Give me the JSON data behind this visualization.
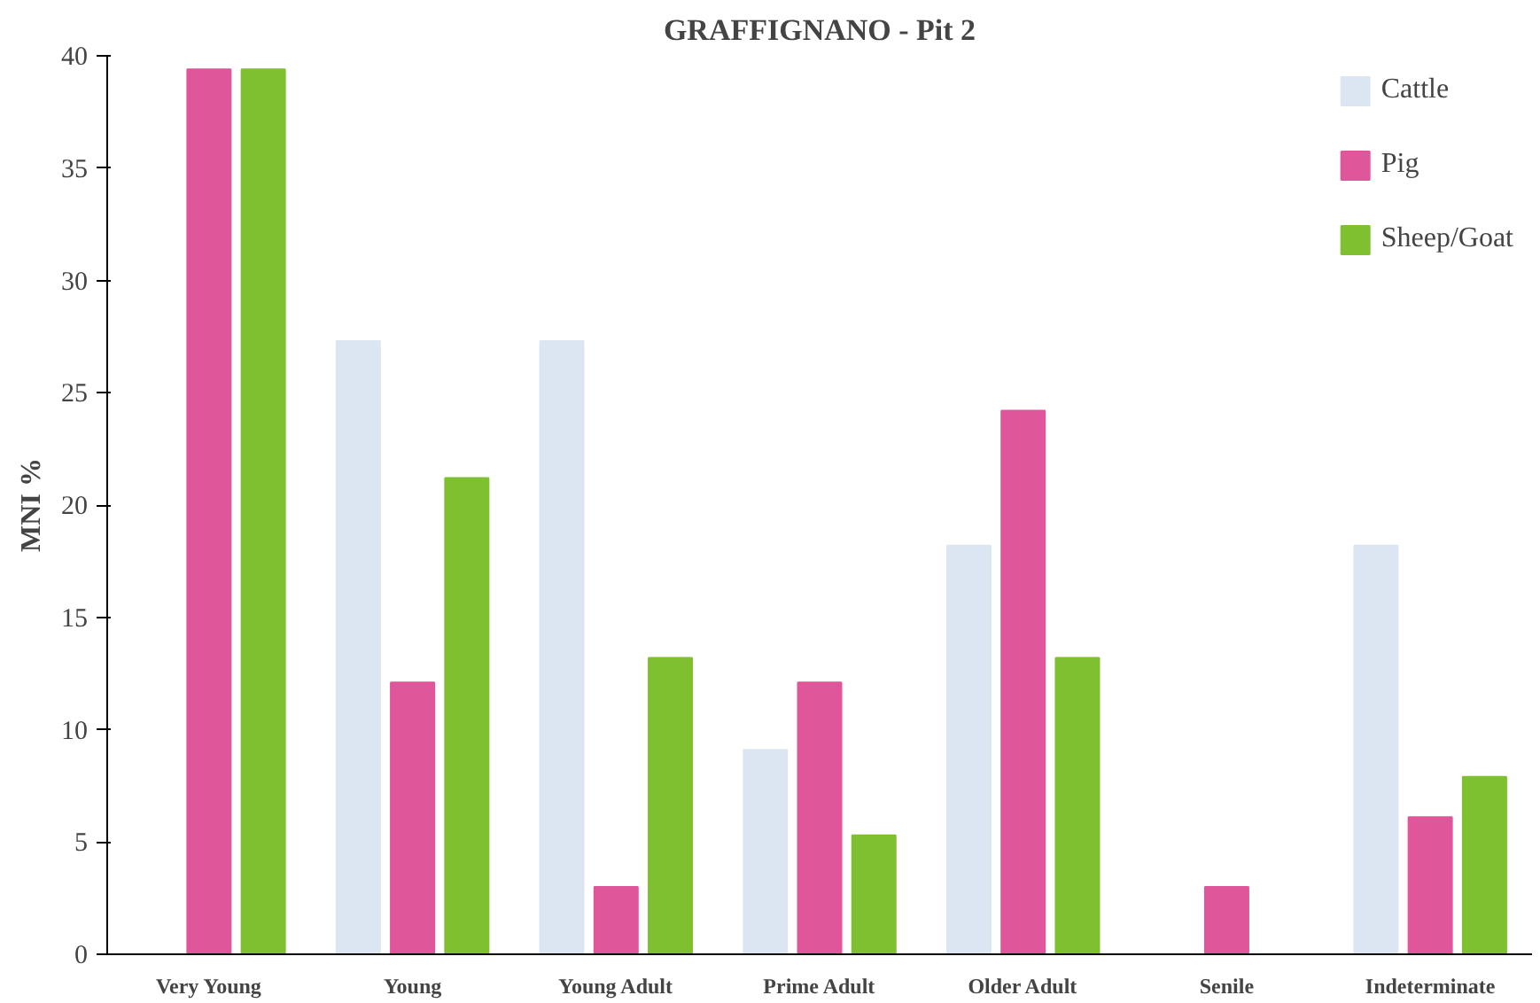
{
  "chart_data": {
    "type": "bar",
    "title": "GRAFFIGNANO - Pit 2",
    "ylabel": "MNI %",
    "categories": [
      "Very Young",
      "Young",
      "Young Adult",
      "Prime Adult",
      "Older Adult",
      "Senile",
      "Indeterminate"
    ],
    "series": [
      {
        "name": "Cattle",
        "color": "#dce6f2",
        "values": [
          0,
          27.3,
          27.3,
          9.1,
          18.2,
          0,
          18.2
        ]
      },
      {
        "name": "Pig",
        "color": "#e0569a",
        "values": [
          39.4,
          12.1,
          3.0,
          12.1,
          24.2,
          3.0,
          6.1
        ]
      },
      {
        "name": "Sheep/Goat",
        "color": "#7fc031",
        "values": [
          39.4,
          21.2,
          13.2,
          5.3,
          13.2,
          0,
          7.9
        ]
      }
    ],
    "ylim": [
      0,
      40
    ],
    "yticks": [
      0,
      5,
      10,
      15,
      20,
      25,
      30,
      35,
      40
    ],
    "grid": false,
    "legend": "top right"
  }
}
